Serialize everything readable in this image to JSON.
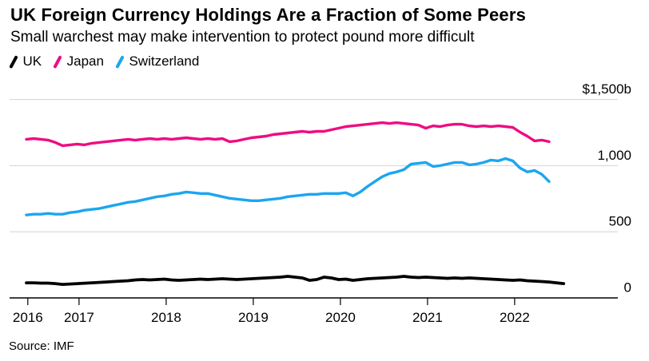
{
  "header": {
    "title": "UK Foreign Currency Holdings Are a Fraction of Some Peers",
    "subtitle": "Small warchest may make intervention to protect pound more difficult"
  },
  "source": {
    "label": "Source: IMF"
  },
  "chart_data": {
    "type": "line",
    "title": "UK Foreign Currency Holdings Are a Fraction of Some Peers",
    "subtitle": "Small warchest may make intervention to protect pound more difficult",
    "unit": "USD billions",
    "x_start_month": "2016-06",
    "x_frequency": "monthly",
    "grid": "horizontal",
    "legend_position": "top-left",
    "ylim": [
      0,
      1500
    ],
    "colors": {
      "grid": "#D8D8D8",
      "axis": "#000000"
    },
    "y_ticks": [
      {
        "label": "$1,500b",
        "value": 1500
      },
      {
        "label": "1,000",
        "value": 1000
      },
      {
        "label": "500",
        "value": 500
      },
      {
        "label": "0",
        "value": 0
      }
    ],
    "x_ticks": [
      {
        "label": "2016",
        "month_index": 0.2
      },
      {
        "label": "2017",
        "month_index": 7.25
      },
      {
        "label": "2018",
        "month_index": 19.25
      },
      {
        "label": "2019",
        "month_index": 31.25
      },
      {
        "label": "2020",
        "month_index": 43.25
      },
      {
        "label": "2021",
        "month_index": 55.25
      },
      {
        "label": "2022",
        "month_index": 67.25
      }
    ],
    "series": [
      {
        "name": "UK",
        "color": "#000000",
        "end_month": "2022-08",
        "values": [
          114,
          114,
          112,
          112,
          108,
          102,
          105,
          108,
          111,
          114,
          117,
          120,
          124,
          127,
          130,
          136,
          139,
          136,
          139,
          142,
          136,
          133,
          136,
          139,
          142,
          139,
          142,
          145,
          142,
          139,
          142,
          145,
          148,
          151,
          154,
          157,
          163,
          157,
          151,
          133,
          139,
          157,
          151,
          139,
          142,
          133,
          139,
          145,
          148,
          151,
          154,
          157,
          163,
          157,
          154,
          157,
          154,
          151,
          148,
          151,
          148,
          151,
          148,
          145,
          142,
          139,
          136,
          133,
          136,
          130,
          127,
          124,
          120,
          114,
          108
        ]
      },
      {
        "name": "Japan",
        "color": "#EE0D82",
        "end_month": "2022-06",
        "values": [
          1199,
          1205,
          1199,
          1193,
          1175,
          1151,
          1157,
          1163,
          1157,
          1169,
          1175,
          1181,
          1187,
          1193,
          1199,
          1193,
          1199,
          1205,
          1199,
          1205,
          1199,
          1205,
          1211,
          1205,
          1199,
          1205,
          1199,
          1205,
          1181,
          1187,
          1199,
          1211,
          1217,
          1223,
          1235,
          1241,
          1247,
          1253,
          1259,
          1253,
          1259,
          1259,
          1271,
          1283,
          1295,
          1301,
          1307,
          1313,
          1319,
          1325,
          1319,
          1325,
          1319,
          1313,
          1307,
          1283,
          1301,
          1295,
          1307,
          1313,
          1313,
          1301,
          1295,
          1301,
          1295,
          1301,
          1295,
          1289,
          1253,
          1223,
          1187,
          1193,
          1181
        ]
      },
      {
        "name": "Switzerland",
        "color": "#1BA6F0",
        "end_month": "2022-06",
        "values": [
          627,
          633,
          633,
          639,
          633,
          633,
          645,
          651,
          663,
          669,
          675,
          687,
          699,
          711,
          723,
          729,
          741,
          753,
          765,
          771,
          783,
          789,
          801,
          795,
          789,
          789,
          777,
          765,
          753,
          747,
          741,
          735,
          735,
          741,
          747,
          753,
          765,
          771,
          777,
          783,
          783,
          789,
          789,
          789,
          795,
          771,
          801,
          843,
          880,
          916,
          940,
          952,
          970,
          1012,
          1018,
          1024,
          994,
          1000,
          1012,
          1024,
          1024,
          1006,
          1012,
          1024,
          1042,
          1036,
          1054,
          1036,
          982,
          952,
          964,
          934,
          880
        ]
      }
    ]
  }
}
